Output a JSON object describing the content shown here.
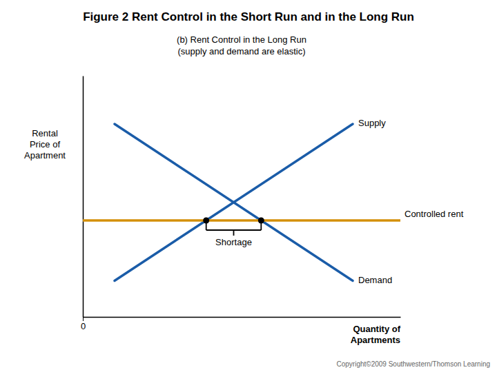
{
  "chart_data": {
    "type": "line",
    "title": "Figure 2 Rent Control in the Short Run and in the Long Run",
    "subtitle": [
      "(b) Rent Control in the Long Run",
      "(supply and demand are elastic)"
    ],
    "ylabel": [
      "Rental",
      "Price of",
      "Apartment"
    ],
    "xlabel": [
      "Quantity of",
      "Apartments"
    ],
    "xlim": [
      0,
      10
    ],
    "ylim": [
      0,
      10
    ],
    "xticks": [
      0
    ],
    "yticks": [],
    "tick_labels": "x",
    "series": [
      {
        "name": "Supply",
        "color": "#1a5ca8",
        "x": [
          1.0,
          8.5
        ],
        "values": [
          1.5,
          8.0
        ]
      },
      {
        "name": "Demand",
        "color": "#1a5ca8",
        "x": [
          1.0,
          8.5
        ],
        "values": [
          8.0,
          1.5
        ]
      },
      {
        "name": "Controlled rent",
        "type": "hline",
        "color": "#d4900a",
        "values": [
          4.0
        ]
      },
      {
        "type": "scatter",
        "marker": "circle",
        "color": "#000000",
        "label": "Shortage",
        "x": [
          5.615384615384615,
          3.8846153846153846
        ],
        "values": [
          4.0,
          4.0
        ]
      }
    ],
    "source": "Copyright©2009  Southwestern/Thomson Learning"
  }
}
